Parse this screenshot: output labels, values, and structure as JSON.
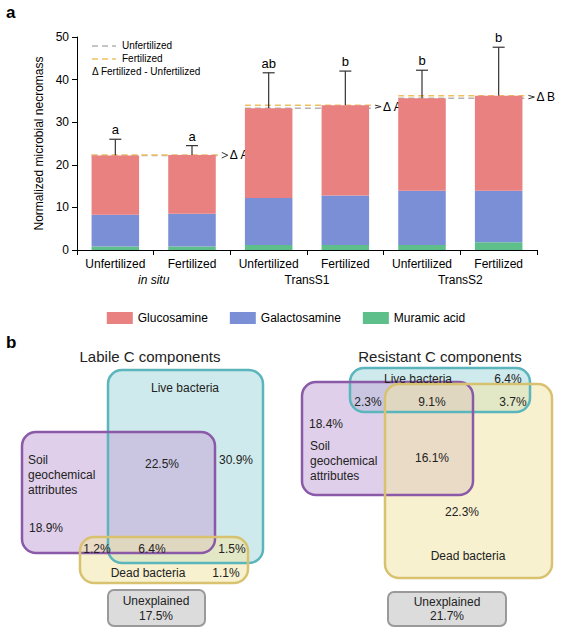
{
  "chart_data": {
    "type": "bar",
    "panel_label": "a",
    "stacked": true,
    "ylabel": "Normalized microbial necromass",
    "categories": [
      "Unfertilized",
      "Fertilized",
      "Unfertilized",
      "Fertilized",
      "Unfertilized",
      "Fertilized"
    ],
    "groups": [
      "in situ",
      "TransS1",
      "TransS2"
    ],
    "series": [
      {
        "name": "Glucosamine",
        "color": "#e8817f",
        "values": [
          13.9,
          13.8,
          21.1,
          21.2,
          21.7,
          22.3
        ]
      },
      {
        "name": "Galactosamine",
        "color": "#7b8fd6",
        "values": [
          7.5,
          7.7,
          11.0,
          11.6,
          12.7,
          12.1
        ]
      },
      {
        "name": "Muramic acid",
        "color": "#5fbf8a",
        "values": [
          0.8,
          0.8,
          1.2,
          1.2,
          1.2,
          1.8
        ]
      }
    ],
    "error_bars": [
      3.8,
      2.2,
      8.3,
      8.0,
      6.6,
      11.4
    ],
    "significance_labels": [
      "a",
      "a",
      "ab",
      "b",
      "b",
      "b"
    ],
    "reference_lines": [
      {
        "name": "Unfertilized",
        "color": "#b3b3b3",
        "line_style": "dashed"
      },
      {
        "name": "Fertilized",
        "color": "#f0c060",
        "line_style": "dashed"
      }
    ],
    "delta_legend": "Δ Fertilized - Unfertilized",
    "delta_labels": [
      "Δ A",
      "Δ AB",
      "Δ B"
    ],
    "ylim": [
      0,
      50
    ],
    "yticks": [
      0,
      10,
      20,
      30,
      40,
      50
    ],
    "grid": false,
    "legend": "bottom"
  },
  "diagram": {
    "panel_label": "b",
    "venns": [
      {
        "title": "Labile C components",
        "sets": [
          "Live bacteria",
          "Soil geochemical attributes",
          "Dead bacteria"
        ],
        "regions": [
          "30.9%",
          "22.5%",
          "18.9%",
          "1.2%",
          "6.4%",
          "1.5%",
          "1.1%"
        ],
        "unexplained_label": "Unexplained",
        "unexplained": "17.5%"
      },
      {
        "title": "Resistant C components",
        "sets": [
          "Live bacteria",
          "Soil geochemical attributes",
          "Dead bacteria"
        ],
        "regions": [
          "6.4%",
          "2.3%",
          "18.4%",
          "16.1%",
          "9.1%",
          "3.7%",
          "22.3%"
        ],
        "unexplained_label": "Unexplained",
        "unexplained": "21.7%"
      }
    ]
  }
}
